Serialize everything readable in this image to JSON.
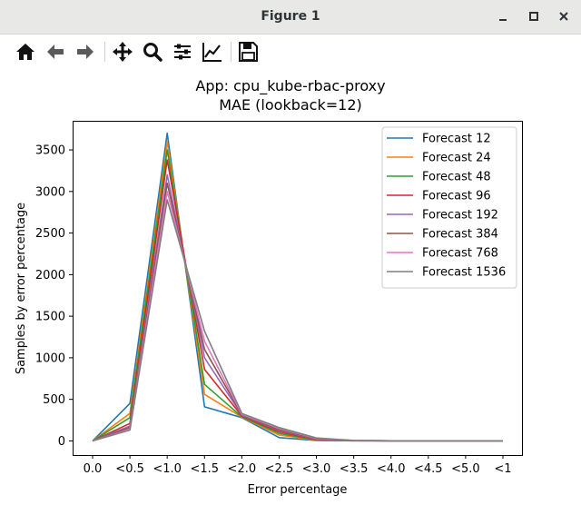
{
  "window": {
    "title": "Figure 1",
    "controls": [
      "minimize-icon",
      "maximize-icon",
      "close-icon"
    ]
  },
  "toolbar": {
    "tools": [
      "home-icon",
      "back-arrow-icon",
      "forward-arrow-icon",
      "pan-icon",
      "zoom-icon",
      "configure-subplots-icon",
      "edit-axis-icon",
      "save-icon"
    ]
  },
  "chart_data": {
    "type": "line",
    "title": "App: cpu_kube-rbac-proxy",
    "subtitle": "MAE (lookback=12)",
    "xlabel": "Error percentage",
    "ylabel": "Samples by error percentage",
    "categories": [
      "0.0",
      "<0.5",
      "<1.0",
      "<1.5",
      "<2.0",
      "<2.5",
      "<3.0",
      "<3.5",
      "<4.0",
      "<4.5",
      "<5.0",
      "<1"
    ],
    "yticks": [
      0,
      500,
      1000,
      1500,
      2000,
      2500,
      3000,
      3500
    ],
    "ylim": [
      -170,
      3850
    ],
    "grid": false,
    "legend_position": "top-right",
    "series": [
      {
        "name": "Forecast 12",
        "color": "#1f77b4",
        "values": [
          0,
          450,
          3700,
          410,
          280,
          40,
          5,
          2,
          1,
          1,
          1,
          1
        ]
      },
      {
        "name": "Forecast 24",
        "color": "#ff7f0e",
        "values": [
          0,
          330,
          3600,
          560,
          285,
          70,
          8,
          2,
          1,
          1,
          1,
          1
        ]
      },
      {
        "name": "Forecast 48",
        "color": "#2ca02c",
        "values": [
          0,
          280,
          3500,
          680,
          290,
          90,
          10,
          3,
          1,
          1,
          1,
          1
        ]
      },
      {
        "name": "Forecast 96",
        "color": "#d62728",
        "values": [
          0,
          210,
          3380,
          860,
          300,
          110,
          15,
          3,
          1,
          1,
          1,
          1
        ]
      },
      {
        "name": "Forecast 192",
        "color": "#9467bd",
        "values": [
          0,
          180,
          3200,
          1000,
          310,
          125,
          20,
          4,
          1,
          1,
          1,
          1
        ]
      },
      {
        "name": "Forecast 384",
        "color": "#8c564b",
        "values": [
          0,
          160,
          3100,
          1100,
          315,
          135,
          25,
          4,
          1,
          1,
          1,
          1
        ]
      },
      {
        "name": "Forecast 768",
        "color": "#e377c2",
        "values": [
          0,
          140,
          3000,
          1200,
          320,
          150,
          30,
          5,
          1,
          1,
          1,
          1
        ]
      },
      {
        "name": "Forecast 1536",
        "color": "#7f7f7f",
        "values": [
          0,
          130,
          2900,
          1320,
          330,
          160,
          35,
          6,
          1,
          1,
          1,
          1
        ]
      }
    ]
  }
}
